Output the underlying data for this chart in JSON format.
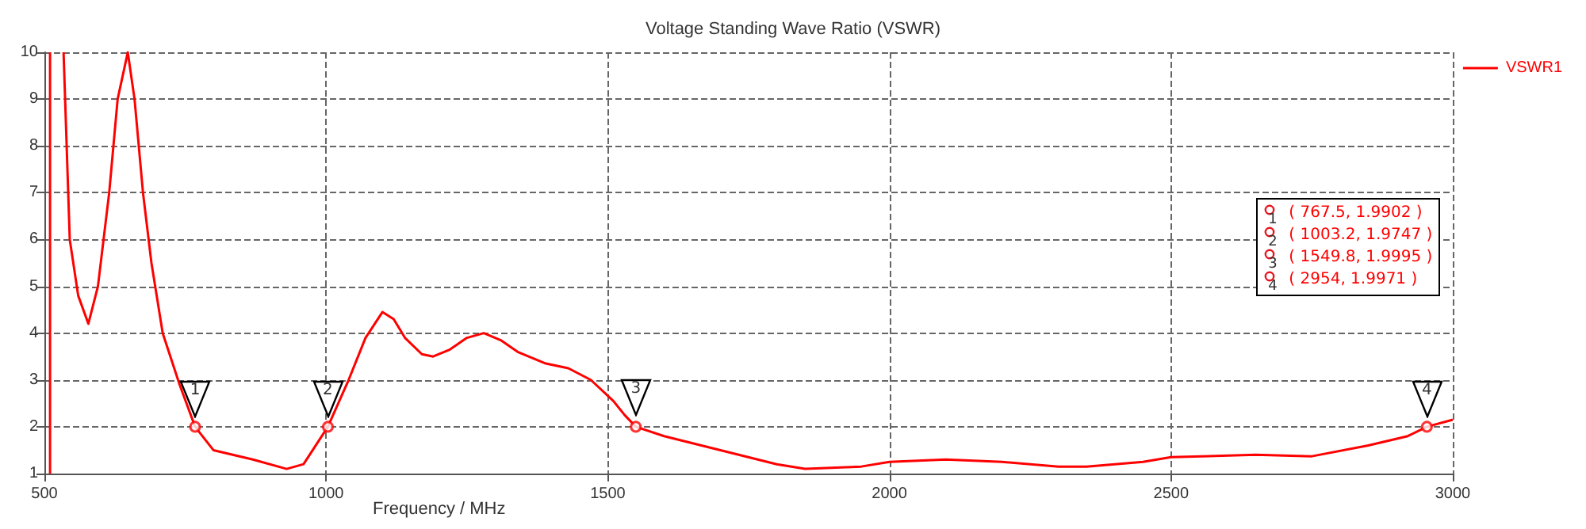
{
  "chart_data": {
    "type": "line",
    "title": "Voltage Standing Wave Ratio (VSWR)",
    "xlabel": "Frequency / MHz",
    "series": [
      {
        "name": "VSWR1",
        "color": "#ff0000",
        "x": [
          510,
          510,
          null,
          534,
          545,
          560,
          578,
          595,
          615,
          630,
          648,
          660,
          675,
          690,
          710,
          740,
          767.5,
          800,
          870,
          930,
          960,
          1003.2,
          1040,
          1070,
          1100,
          1120,
          1140,
          1170,
          1190,
          1220,
          1250,
          1280,
          1310,
          1340,
          1390,
          1430,
          1470,
          1510,
          1530,
          1549.8,
          1600,
          1700,
          1800,
          1850,
          1950,
          2000,
          2100,
          2200,
          2300,
          2350,
          2450,
          2500,
          2650,
          2750,
          2850,
          2920,
          2954,
          3000
        ],
        "values": [
          1,
          10,
          null,
          10,
          6,
          4.8,
          4.2,
          5,
          7,
          9,
          10,
          9,
          7,
          5.5,
          4,
          2.9,
          2,
          1.5,
          1.3,
          1.1,
          1.2,
          2,
          3,
          3.9,
          4.45,
          4.3,
          3.9,
          3.55,
          3.5,
          3.65,
          3.9,
          4.0,
          3.85,
          3.6,
          3.35,
          3.25,
          3.0,
          2.55,
          2.25,
          2,
          1.8,
          1.5,
          1.2,
          1.1,
          1.15,
          1.25,
          1.3,
          1.25,
          1.15,
          1.15,
          1.25,
          1.35,
          1.4,
          1.37,
          1.6,
          1.8,
          2,
          2.15
        ]
      },
      {
        "type": "scatter",
        "color": "#ff0000",
        "marker": "circle",
        "x": [
          767.5,
          1003.2,
          1549.8,
          2954
        ],
        "values": [
          2,
          2,
          2,
          2
        ]
      }
    ],
    "xlim": [
      500,
      3000
    ],
    "xticks": [
      500,
      1000,
      1500,
      2000,
      2500,
      3000
    ],
    "ylim": [
      1,
      10
    ],
    "yticks": [
      1,
      2,
      3,
      4,
      5,
      6,
      7,
      8,
      9,
      10
    ],
    "grid": true,
    "legend": "top right",
    "line_style": "solid",
    "annotations": [
      {
        "text": "1",
        "x": 767.5,
        "y": 1.9902
      },
      {
        "text": "2",
        "x": 1003.2,
        "y": 1.9747
      },
      {
        "text": "3",
        "x": 1549.8,
        "y": 1.9995
      },
      {
        "text": "4",
        "x": 2954,
        "y": 1.9971
      },
      "( 767.5, 1.9902 )",
      "( 1003.2, 1.9747 )",
      "( 1549.8, 1.9995 )",
      "( 2954, 1.9971 )"
    ]
  }
}
